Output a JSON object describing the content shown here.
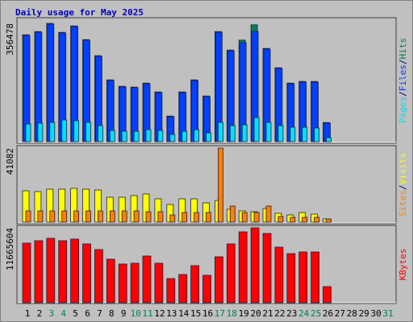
{
  "chart_data": [
    {
      "type": "bar",
      "title": "Daily usage for May 2025",
      "ylim": [
        0,
        356478
      ],
      "yticks": [
        356478
      ],
      "series": [
        {
          "name": "Hits",
          "color": "#00805c",
          "values": [
            322100,
            331800,
            356478,
            329400,
            348800,
            307600,
            259100,
            186300,
            166900,
            164500,
            176600,
            149900,
            77200,
            149900,
            186300,
            137800,
            331800,
            276000,
            306000,
            352000,
            280900,
            222700,
            176600,
            181500,
            181500,
            57800,
            0,
            0,
            0,
            0,
            0
          ]
        },
        {
          "name": "Files",
          "color": "#0040ff",
          "values": [
            320100,
            329800,
            354000,
            327375,
            346775,
            305550,
            257050,
            184300,
            164900,
            162475,
            174600,
            147925,
            75175,
            147925,
            184300,
            135800,
            329800,
            274025,
            298275,
            332225,
            278875,
            220675,
            174600,
            179450,
            179450,
            55775,
            0,
            0,
            0,
            0,
            0
          ]
        },
        {
          "name": "Pages",
          "color": "#00e0ff",
          "values": [
            53350,
            55775,
            58200,
            65475,
            63050,
            58200,
            48500,
            33950,
            31525,
            31525,
            36375,
            33950,
            21825,
            31525,
            36375,
            26675,
            58200,
            48500,
            50925,
            72750,
            58200,
            48500,
            43650,
            43650,
            41225,
            12125,
            0,
            0,
            0,
            0,
            0
          ]
        }
      ],
      "legend_order": [
        2,
        1,
        0
      ],
      "legend_separator": "/"
    },
    {
      "type": "bar",
      "ylim": [
        0,
        41082
      ],
      "yticks": [
        41082
      ],
      "series": [
        {
          "name": "Visits",
          "color": "#ffff00",
          "values": [
            17414,
            16967,
            18307,
            18307,
            18753,
            18307,
            17860,
            13842,
            13842,
            14735,
            15628,
            12949,
            9823,
            12949,
            12949,
            10716,
            12056,
            7144,
            6251,
            5805,
            7591,
            4912,
            4019,
            5358,
            4465,
            1786,
            0,
            0,
            0,
            0,
            0
          ]
        },
        {
          "name": "Sites",
          "color": "#ff8000",
          "values": [
            6251,
            6251,
            6251,
            6251,
            6251,
            6251,
            6251,
            6251,
            6251,
            6251,
            5805,
            5805,
            4019,
            5358,
            5358,
            5358,
            41082,
            8930,
            5358,
            5358,
            8930,
            3126,
            2679,
            2679,
            2679,
            1786,
            0,
            0,
            0,
            0,
            0
          ]
        }
      ],
      "legend_order": [
        1,
        0
      ],
      "legend_separator": "/"
    },
    {
      "type": "bar",
      "ylim": [
        0,
        11665604
      ],
      "yticks": [
        11665604
      ],
      "series": [
        {
          "name": "KBytes",
          "color": "#ff0000",
          "values": [
            9282264,
            9658572,
            10034880,
            9658572,
            9909444,
            9156828,
            8278776,
            6773544,
            6020928,
            6146364,
            7275288,
            6146364,
            3763080,
            4390260,
            5770056,
            4264824,
            7149852,
            9156828,
            11038368,
            11665604,
            10787496,
            8655084,
            7651596,
            7902468,
            7902468,
            2508720,
            0,
            0,
            0,
            0,
            0
          ]
        }
      ],
      "legend_order": [
        0
      ],
      "categories": [
        "1",
        "2",
        "3",
        "4",
        "5",
        "6",
        "7",
        "8",
        "9",
        "10",
        "11",
        "12",
        "13",
        "14",
        "15",
        "16",
        "17",
        "18",
        "19",
        "20",
        "21",
        "22",
        "23",
        "24",
        "25",
        "26",
        "27",
        "28",
        "29",
        "30",
        "31"
      ],
      "category_colors": [
        "#000000",
        "#000000",
        "#00805c",
        "#00805c",
        "#000000",
        "#000000",
        "#000000",
        "#000000",
        "#000000",
        "#00805c",
        "#00805c",
        "#000000",
        "#000000",
        "#000000",
        "#000000",
        "#000000",
        "#00805c",
        "#00805c",
        "#000000",
        "#000000",
        "#000000",
        "#000000",
        "#000000",
        "#00805c",
        "#00805c",
        "#000000",
        "#000000",
        "#000000",
        "#000000",
        "#000000",
        "#00805c"
      ]
    }
  ]
}
